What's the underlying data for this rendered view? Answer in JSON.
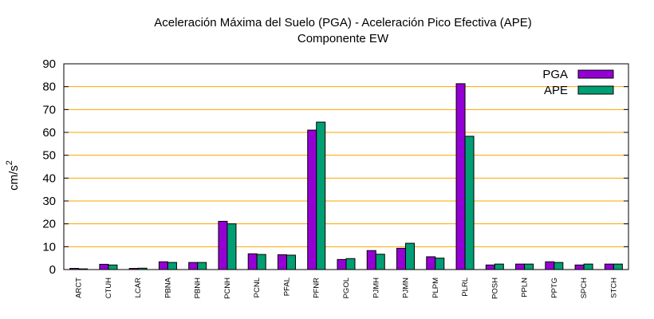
{
  "chart_data": {
    "type": "bar",
    "title": "Aceleración Máxima del Suelo (PGA) -  Aceleración Pico Efectiva (APE)",
    "subtitle": "Componente EW",
    "xlabel": "",
    "ylabel": "cm/s",
    "ylabel_superscript": "2",
    "ylim": [
      0,
      90
    ],
    "yticks": [
      0,
      10,
      20,
      30,
      40,
      50,
      60,
      70,
      80,
      90
    ],
    "grid": true,
    "legend": "top-right",
    "categories": [
      "ARCT",
      "CTUH",
      "LCAR",
      "PBNA",
      "PBNH",
      "PCNH",
      "PCNL",
      "PFAL",
      "PFNR",
      "PGOL",
      "PJMH",
      "PJMN",
      "PLPM",
      "PLRL",
      "POSH",
      "PPLN",
      "PPTG",
      "SPCH",
      "STCH"
    ],
    "series": [
      {
        "name": "PGA",
        "color": "#9400d3",
        "values": [
          0.5,
          2.3,
          0.5,
          3.4,
          3.1,
          21.1,
          6.9,
          6.5,
          61.0,
          4.4,
          8.3,
          9.3,
          5.6,
          81.3,
          2.0,
          2.4,
          3.4,
          2.0,
          2.4
        ]
      },
      {
        "name": "APE",
        "color": "#009e73",
        "values": [
          0.3,
          2.0,
          0.6,
          3.1,
          3.1,
          20.0,
          6.6,
          6.3,
          64.5,
          4.8,
          6.7,
          11.5,
          5.0,
          58.3,
          2.4,
          2.4,
          3.1,
          2.4,
          2.4
        ]
      }
    ],
    "grid_color": "#ffa500"
  }
}
